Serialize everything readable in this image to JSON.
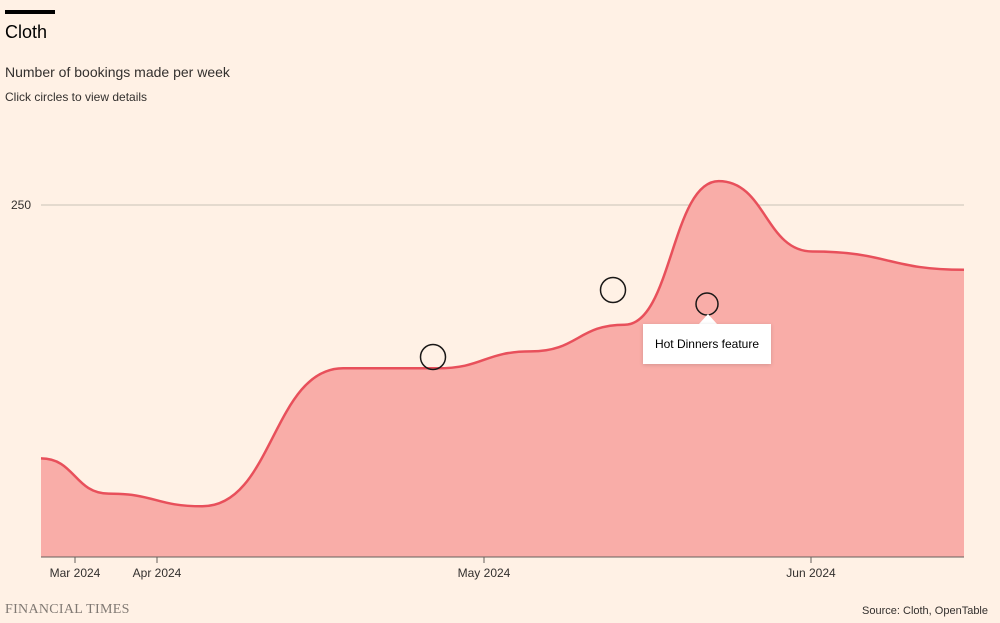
{
  "header": {
    "title": "Cloth",
    "subtitle": "Number of bookings made per week",
    "hint": "Click circles to view details"
  },
  "tooltip": {
    "text": "Hot Dinners feature"
  },
  "footer": {
    "brand": "FINANCIAL TIMES",
    "source": "Source: Cloth, OpenTable"
  },
  "colors": {
    "line": "#e8505b",
    "area": "#f9ada8",
    "background": "#fff1e5",
    "grid": "#c9c2b8"
  },
  "chart_data": {
    "type": "area",
    "title": "Cloth",
    "subtitle": "Number of bookings made per week",
    "xlabel": "",
    "ylabel": "",
    "x_ticks": [
      "Mar 2024",
      "Apr 2024",
      "May 2024",
      "Jun 2024"
    ],
    "y_ticks": [
      250
    ],
    "ylim": [
      0,
      250
    ],
    "grid": true,
    "series": [
      {
        "values": [
          {
            "x": "2024-02-21",
            "y": 70
          },
          {
            "x": "2024-03-06",
            "y": 45
          },
          {
            "x": "2024-03-20",
            "y": 36
          },
          {
            "x": "2024-04-10",
            "y": 134
          },
          {
            "x": "2024-04-24",
            "y": 134
          },
          {
            "x": "2024-05-08",
            "y": 146
          },
          {
            "x": "2024-05-22",
            "y": 165
          },
          {
            "x": "2024-06-05",
            "y": 267
          },
          {
            "x": "2024-06-19",
            "y": 217
          },
          {
            "x": "2024-06-26",
            "y": 204
          }
        ]
      }
    ],
    "annotations": [
      {
        "x": "2024-04-27",
        "y": 140
      },
      {
        "x": "2024-05-13",
        "y": 188
      },
      {
        "x": "2024-05-22",
        "y": 178,
        "label": "Hot Dinners feature"
      }
    ]
  }
}
